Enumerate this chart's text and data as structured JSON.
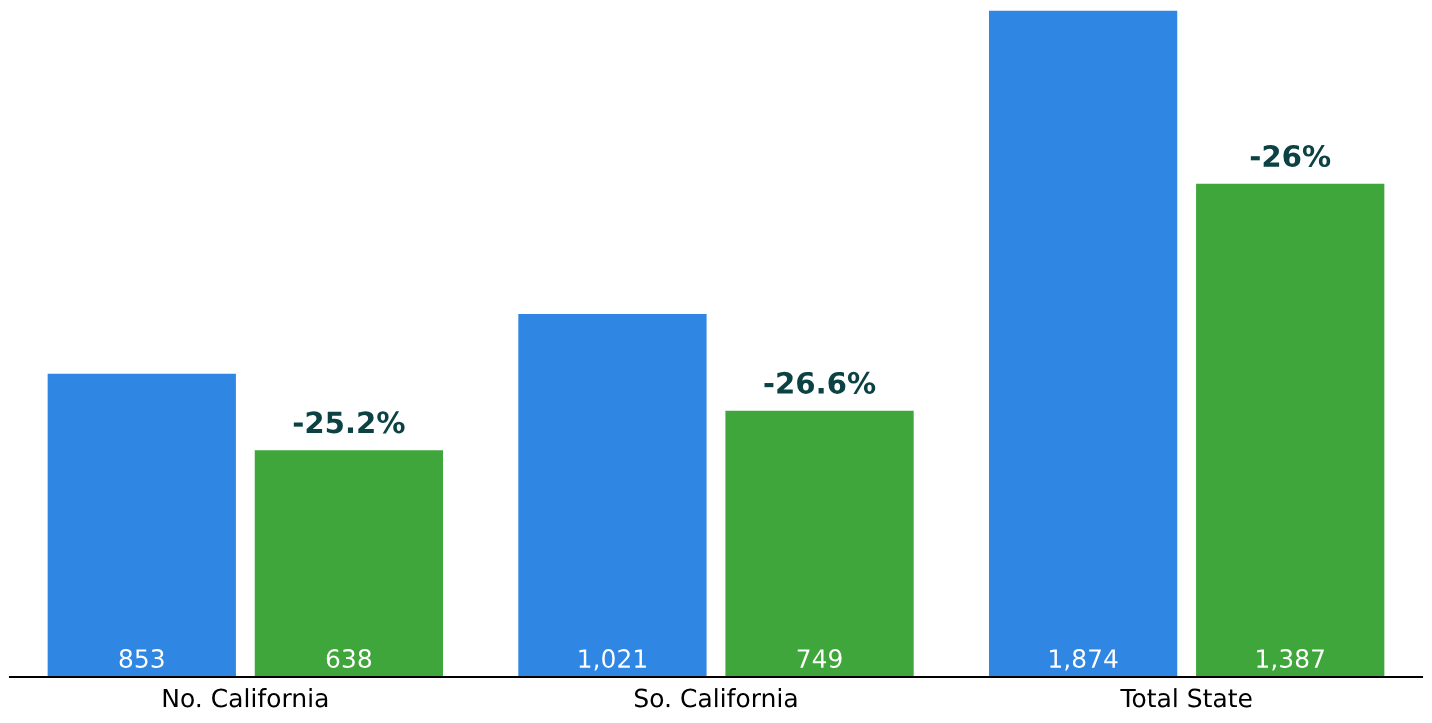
{
  "chart_data": {
    "type": "bar",
    "categories": [
      "No. California",
      "So. California",
      "Total State"
    ],
    "series": [
      {
        "color": "#2f86e3",
        "values": [
          853,
          1021,
          1874
        ],
        "value_labels": [
          "853",
          "1,021",
          "1,874"
        ]
      },
      {
        "color": "#3ea63a",
        "values": [
          638,
          749,
          1387
        ],
        "value_labels": [
          "638",
          "749",
          "1,387"
        ]
      }
    ],
    "tick_labels": "x",
    "grid": false,
    "legend": false,
    "annotations": [
      "-25.2%",
      "-26.6%",
      "-26%"
    ]
  }
}
